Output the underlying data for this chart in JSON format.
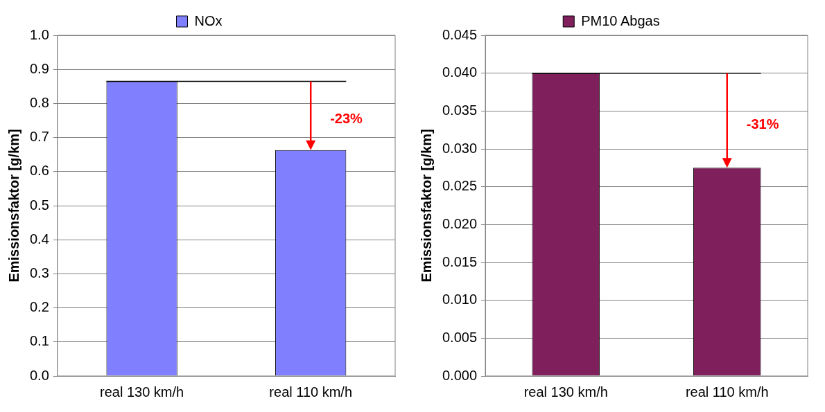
{
  "chart_data": [
    {
      "type": "bar",
      "ylabel": "Emissionsfaktor [g/km]",
      "categories": [
        "real 130 km/h",
        "real 110 km/h"
      ],
      "series": [
        {
          "name": "NOx",
          "color": "#8080ff",
          "values": [
            0.865,
            0.663
          ]
        }
      ],
      "ylim": [
        0,
        1
      ],
      "yticks": [
        {
          "value": 0,
          "label": "0.0"
        },
        0.1,
        0.2,
        0.3,
        0.4,
        0.5,
        0.6,
        0.7,
        0.8,
        0.9,
        {
          "value": 1,
          "label": "1.0"
        }
      ],
      "grid": "y",
      "legend": "top",
      "ref_lines": [
        {
          "axis": "y",
          "value": 0.865,
          "color": "#000000"
        }
      ],
      "annotations": [
        "-23%"
      ]
    },
    {
      "type": "bar",
      "ylabel": "Emissionsfaktor [g/km]",
      "categories": [
        "real 130 km/h",
        "real 110 km/h"
      ],
      "series": [
        {
          "name": "PM10 Abgas",
          "color": "#7f1f5c",
          "values": [
            0.04,
            0.0275
          ]
        }
      ],
      "ylim": [
        0,
        0.045
      ],
      "yticks": [
        {
          "value": 0,
          "label": "0.000"
        },
        0.005,
        {
          "value": 0.01,
          "label": "0.010"
        },
        0.015,
        {
          "value": 0.02,
          "label": "0.020"
        },
        0.025,
        {
          "value": 0.03,
          "label": "0.030"
        },
        0.035,
        {
          "value": 0.04,
          "label": "0.040"
        },
        0.045
      ],
      "grid": "y",
      "legend": "top",
      "ref_lines": [
        {
          "axis": "y",
          "value": 0.04,
          "color": "#000000"
        }
      ],
      "annotations": [
        "-31%"
      ]
    }
  ]
}
